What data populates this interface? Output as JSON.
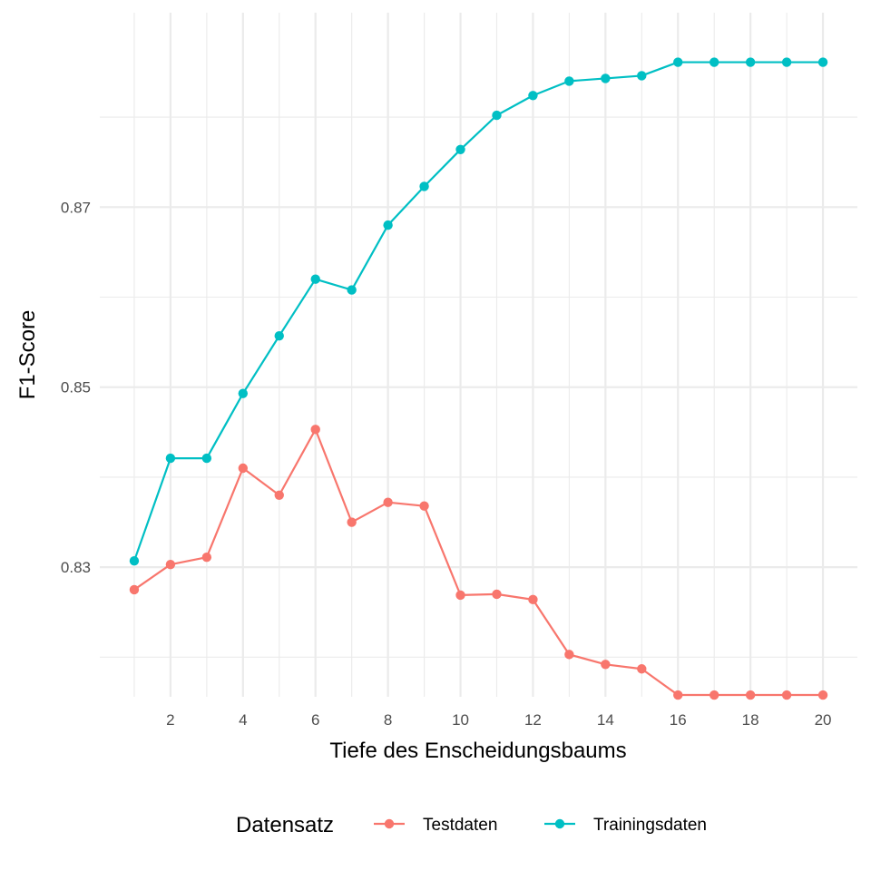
{
  "chart_data": {
    "type": "line",
    "xlabel": "Tiefe des Enscheidungsbaums",
    "ylabel": "F1-Score",
    "x": [
      1,
      2,
      3,
      4,
      5,
      6,
      7,
      8,
      9,
      10,
      11,
      12,
      13,
      14,
      15,
      16,
      17,
      18,
      19,
      20
    ],
    "x_ticks": [
      2,
      4,
      6,
      8,
      10,
      12,
      14,
      16,
      18,
      20
    ],
    "y_ticks": [
      0.83,
      0.85,
      0.87
    ],
    "y_tick_labels": [
      "0.83",
      "0.85",
      "0.87"
    ],
    "xlim": [
      0.05,
      20.95
    ],
    "ylim": [
      0.8156,
      0.8916
    ],
    "grid": true,
    "legend": {
      "title": "Datensatz",
      "position": "bottom"
    },
    "series": [
      {
        "name": "Testdaten",
        "color": "#F8766D",
        "values": [
          0.8275,
          0.8303,
          0.8311,
          0.841,
          0.838,
          0.8453,
          0.835,
          0.8372,
          0.8368,
          0.8269,
          0.827,
          0.8264,
          0.8203,
          0.8192,
          0.8187,
          0.8158,
          0.8158,
          0.8158,
          0.8158,
          0.8158
        ]
      },
      {
        "name": "Trainingsdaten",
        "color": "#00BFC4",
        "values": [
          0.8307,
          0.8421,
          0.8421,
          0.8493,
          0.8557,
          0.862,
          0.8608,
          0.868,
          0.8723,
          0.8764,
          0.8802,
          0.8824,
          0.884,
          0.8843,
          0.8846,
          0.8861,
          0.8861,
          0.8861,
          0.8861,
          0.8861
        ]
      }
    ]
  }
}
